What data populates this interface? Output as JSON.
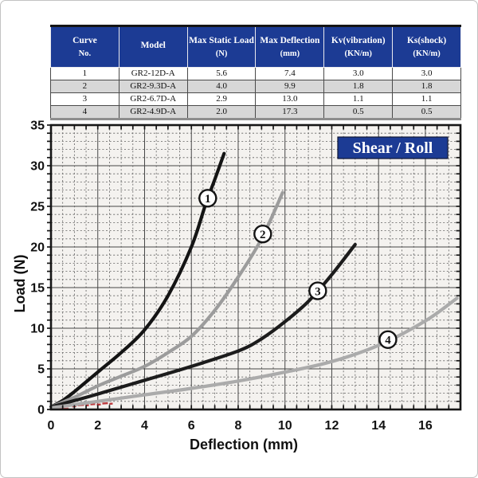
{
  "table": {
    "header_bg": "#1c3b94",
    "header_text_color": "#ffffff",
    "stripe_color": "#d7d7d7",
    "columns": [
      {
        "title": "Curve",
        "unit": "No."
      },
      {
        "title": "Model",
        "unit": ""
      },
      {
        "title": "Max Static Load",
        "unit": "(N)"
      },
      {
        "title": "Max Deflection",
        "unit": "(mm)"
      },
      {
        "title": "Kv(vibration)",
        "unit": "(KN/m)"
      },
      {
        "title": "Ks(shock)",
        "unit": "(KN/m)"
      }
    ],
    "rows": [
      [
        "1",
        "GR2-12D-A",
        "5.6",
        "7.4",
        "3.0",
        "3.0"
      ],
      [
        "2",
        "GR2-9.3D-A",
        "4.0",
        "9.9",
        "1.8",
        "1.8"
      ],
      [
        "3",
        "GR2-6.7D-A",
        "2.9",
        "13.0",
        "1.1",
        "1.1"
      ],
      [
        "4",
        "GR2-4.9D-A",
        "2.0",
        "17.3",
        "0.5",
        "0.5"
      ]
    ]
  },
  "chart_data": {
    "type": "line",
    "badge_label": "Shear / Roll",
    "badge_bg": "#1c3b94",
    "badge_text_color": "#ffffff",
    "xlabel": "Deflection (mm)",
    "ylabel": "Load (N)",
    "xlim": [
      0,
      17.5
    ],
    "ylim": [
      0,
      35
    ],
    "x_major_ticks": [
      0,
      2,
      4,
      6,
      8,
      10,
      12,
      14,
      16
    ],
    "x_minor_step": 0.5,
    "y_major_ticks": [
      0,
      5,
      10,
      15,
      20,
      25,
      30,
      35
    ],
    "y_minor_step": 1,
    "grid": "major-solid, minor-dashed",
    "plot_bg": "#f4f2ef",
    "frame_color": "#161616",
    "watermark_color": "#b52025",
    "series": [
      {
        "name": "1",
        "color": "#141414",
        "points": [
          [
            0,
            0.3
          ],
          [
            0.5,
            1.1
          ],
          [
            1,
            2.2
          ],
          [
            2,
            4.6
          ],
          [
            3,
            7
          ],
          [
            4,
            9.8
          ],
          [
            5,
            14
          ],
          [
            6,
            20
          ],
          [
            6.6,
            25.2
          ],
          [
            7,
            28.3
          ],
          [
            7.4,
            31.5
          ]
        ],
        "label_at": [
          6.7,
          26
        ]
      },
      {
        "name": "2",
        "color": "#9c9c9c",
        "points": [
          [
            0,
            0.3
          ],
          [
            1,
            1.5
          ],
          [
            2,
            2.9
          ],
          [
            3,
            4.1
          ],
          [
            4,
            5.3
          ],
          [
            5,
            7
          ],
          [
            6,
            9
          ],
          [
            7,
            12.2
          ],
          [
            8,
            16.3
          ],
          [
            9,
            21
          ],
          [
            9.9,
            26.7
          ]
        ],
        "label_at": [
          9.05,
          21.6
        ]
      },
      {
        "name": "3",
        "color": "#1c1c1c",
        "points": [
          [
            0,
            0.3
          ],
          [
            1,
            1.1
          ],
          [
            2,
            1.9
          ],
          [
            4,
            3.6
          ],
          [
            6,
            5.3
          ],
          [
            8,
            7.2
          ],
          [
            9,
            8.7
          ],
          [
            10,
            10.8
          ],
          [
            11,
            13.3
          ],
          [
            12,
            16.6
          ],
          [
            13,
            20.3
          ]
        ],
        "label_at": [
          11.4,
          14.6
        ]
      },
      {
        "name": "4",
        "color": "#ababab",
        "points": [
          [
            0,
            0.2
          ],
          [
            2,
            1
          ],
          [
            4,
            1.8
          ],
          [
            6,
            2.6
          ],
          [
            8,
            3.5
          ],
          [
            10,
            4.6
          ],
          [
            12,
            5.9
          ],
          [
            14,
            7.9
          ],
          [
            16,
            10.9
          ],
          [
            17.35,
            13.7
          ]
        ],
        "label_at": [
          14.4,
          8.6
        ]
      }
    ]
  }
}
